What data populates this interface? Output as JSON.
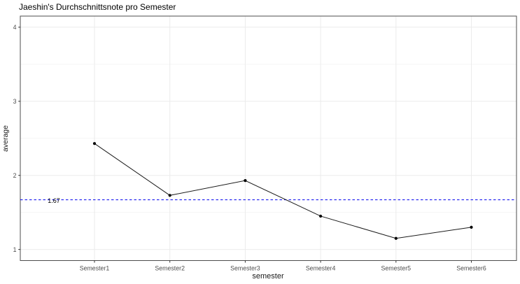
{
  "chart_data": {
    "type": "line",
    "title": "Jaeshin's Durchschnittsnote pro Semester",
    "xlabel": "semester",
    "ylabel": "average",
    "categories": [
      "Semester1",
      "Semester2",
      "Semester3",
      "Semester4",
      "Semester5",
      "Semester6"
    ],
    "series": [
      {
        "name": "average",
        "values": [
          2.43,
          1.73,
          1.93,
          1.45,
          1.15,
          1.3
        ]
      }
    ],
    "yticks": [
      1,
      2,
      3,
      4
    ],
    "yminor": [
      1.5,
      2.5,
      3.5
    ],
    "ylim": [
      0.85,
      4.15
    ],
    "reference_line": {
      "value": 1.67,
      "label": "1.67",
      "style": "dashed",
      "color": "#0000ee"
    },
    "grid": "on",
    "legend": "none",
    "colors": {
      "background": "#ffffff",
      "panel_border": "#4d4d4d",
      "grid_major": "#ebebeb",
      "grid_minor": "#f5f5f5",
      "tick_mark": "#333333",
      "tick_label": "#4d4d4d",
      "line": "#1a1a1a",
      "point": "#000000",
      "title": "#000000",
      "axis_label": "#1a1a1a",
      "reference": "#0000ee"
    }
  }
}
